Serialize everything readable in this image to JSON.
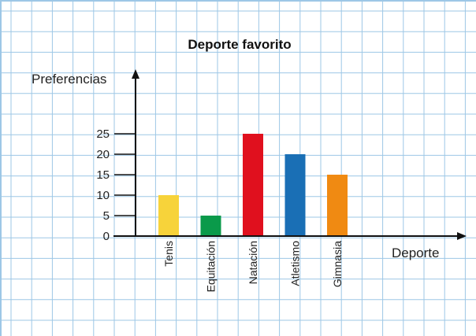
{
  "chart_data": {
    "type": "bar",
    "title": "Deporte favorito",
    "xlabel": "Deporte",
    "ylabel": "Preferencias",
    "categories": [
      "Tenis",
      "Equitación",
      "Natación",
      "Atletismo",
      "Gimnasia"
    ],
    "values": [
      10,
      5,
      25,
      20,
      15
    ],
    "colors": [
      "#f7d33a",
      "#0a9a4a",
      "#e0101e",
      "#1a6fb5",
      "#f08a12"
    ],
    "yticks": [
      0,
      5,
      10,
      15,
      20,
      25
    ],
    "ylim": [
      0,
      25
    ],
    "grid": true,
    "legend": "none"
  },
  "theme": {
    "grid_color": "#9dc7e6",
    "axis_color": "#111111"
  }
}
